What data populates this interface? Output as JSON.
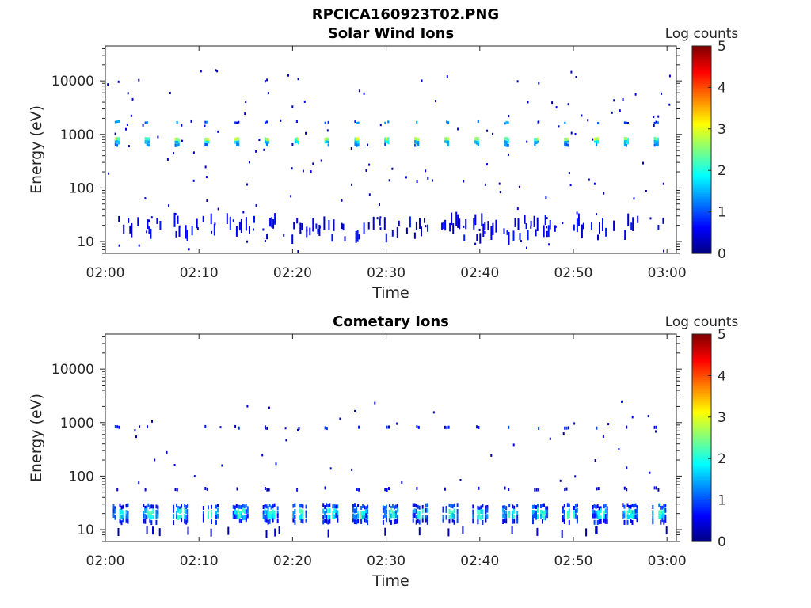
{
  "figure": {
    "filename": "RPCICA160923T02.PNG"
  },
  "chart_data": [
    {
      "type": "heatmap",
      "title": "Solar Wind Ions",
      "xlabel": "Time",
      "ylabel": "Energy (eV)",
      "x_ticks": [
        "02:00",
        "02:10",
        "02:20",
        "02:30",
        "02:40",
        "02:50",
        "03:00"
      ],
      "x_range_minutes": [
        0,
        61
      ],
      "y_ticks": [
        "10",
        "100",
        "1000",
        "10000"
      ],
      "y_scale": "log",
      "y_range": [
        6,
        45000
      ],
      "colorbar": {
        "label": "Log counts",
        "ticks": [
          "0",
          "1",
          "2",
          "3",
          "4",
          "5"
        ],
        "range": [
          0,
          5
        ],
        "colormap": "jet"
      },
      "structures": {
        "main_band_energy_eV": 780,
        "main_band_log_counts": [
          1.5,
          3.0
        ],
        "main_band_pattern": "periodic bursts every ~3.2 minutes",
        "upper_band_energy_eV": 1600,
        "low_energy_band_eV": [
          10,
          30
        ],
        "low_energy_log_counts": [
          0.3,
          1.0
        ],
        "scattered_counts_eV": [
          6,
          16000
        ]
      }
    },
    {
      "type": "heatmap",
      "title": "Cometary Ions",
      "xlabel": "Time",
      "ylabel": "Energy (eV)",
      "x_ticks": [
        "02:00",
        "02:10",
        "02:20",
        "02:30",
        "02:40",
        "02:50",
        "03:00"
      ],
      "x_range_minutes": [
        0,
        61
      ],
      "y_ticks": [
        "10",
        "100",
        "1000",
        "10000"
      ],
      "y_scale": "log",
      "y_range": [
        6,
        45000
      ],
      "colorbar": {
        "label": "Log counts",
        "ticks": [
          "0",
          "1",
          "2",
          "3",
          "4",
          "5"
        ],
        "range": [
          0,
          5
        ],
        "colormap": "jet"
      },
      "structures": {
        "main_band_energy_eV": [
          13,
          28
        ],
        "main_band_log_counts": [
          0.5,
          2.3
        ],
        "main_band_pattern": "periodic bursts every ~3.2 minutes",
        "band_55_eV": 55,
        "band_800_eV": 800,
        "scattered_counts_eV": [
          7,
          2600
        ]
      }
    }
  ]
}
